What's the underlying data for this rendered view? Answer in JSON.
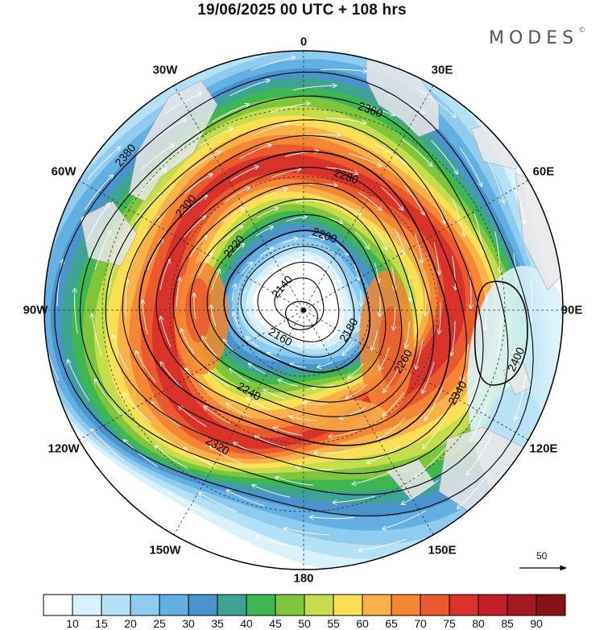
{
  "header": {
    "title": "19/06/2025  00 UTC  + 108 hrs",
    "brand": "MODES",
    "brand_mark": "©"
  },
  "longitude_labels": [
    {
      "text": "0",
      "deg": 0
    },
    {
      "text": "30E",
      "deg": 30
    },
    {
      "text": "60E",
      "deg": 60
    },
    {
      "text": "90E",
      "deg": 90
    },
    {
      "text": "120E",
      "deg": 120
    },
    {
      "text": "150E",
      "deg": 150
    },
    {
      "text": "180",
      "deg": 180
    },
    {
      "text": "150W",
      "deg": 210
    },
    {
      "text": "120W",
      "deg": 240
    },
    {
      "text": "90W",
      "deg": 270
    },
    {
      "text": "60W",
      "deg": 300
    },
    {
      "text": "30W",
      "deg": 330
    }
  ],
  "contours": [
    {
      "label": "2140",
      "value": 2140
    },
    {
      "label": "2160",
      "value": 2160
    },
    {
      "label": "2180",
      "value": 2180
    },
    {
      "label": "2200",
      "value": 2200
    },
    {
      "label": "2220",
      "value": 2220
    },
    {
      "label": "2240",
      "value": 2240
    },
    {
      "label": "2260",
      "value": 2260
    },
    {
      "label": "2280",
      "value": 2280
    },
    {
      "label": "2300",
      "value": 2300
    },
    {
      "label": "2320",
      "value": 2320
    },
    {
      "label": "2340",
      "value": 2340
    },
    {
      "label": "2360",
      "value": 2360
    },
    {
      "label": "2380",
      "value": 2380
    },
    {
      "label": "2400",
      "value": 2400
    }
  ],
  "reference_vector": {
    "label": "50"
  },
  "colorbar": {
    "labels": [
      "10",
      "15",
      "20",
      "25",
      "30",
      "35",
      "40",
      "45",
      "50",
      "55",
      "60",
      "65",
      "70",
      "75",
      "80",
      "85",
      "90"
    ],
    "colors": [
      "#ffffff",
      "#d8f1fb",
      "#b5e1f6",
      "#8ecbee",
      "#64b0e2",
      "#4a93cc",
      "#3ea393",
      "#3eb752",
      "#7fc63d",
      "#c5dd4b",
      "#fbe055",
      "#f8b249",
      "#f58634",
      "#ea5a2e",
      "#d9322a",
      "#c21f2a",
      "#a41924",
      "#851218"
    ]
  },
  "colors": {
    "land": "#e8e8e8",
    "contour": "#000000",
    "streamline": "#ffffff"
  }
}
